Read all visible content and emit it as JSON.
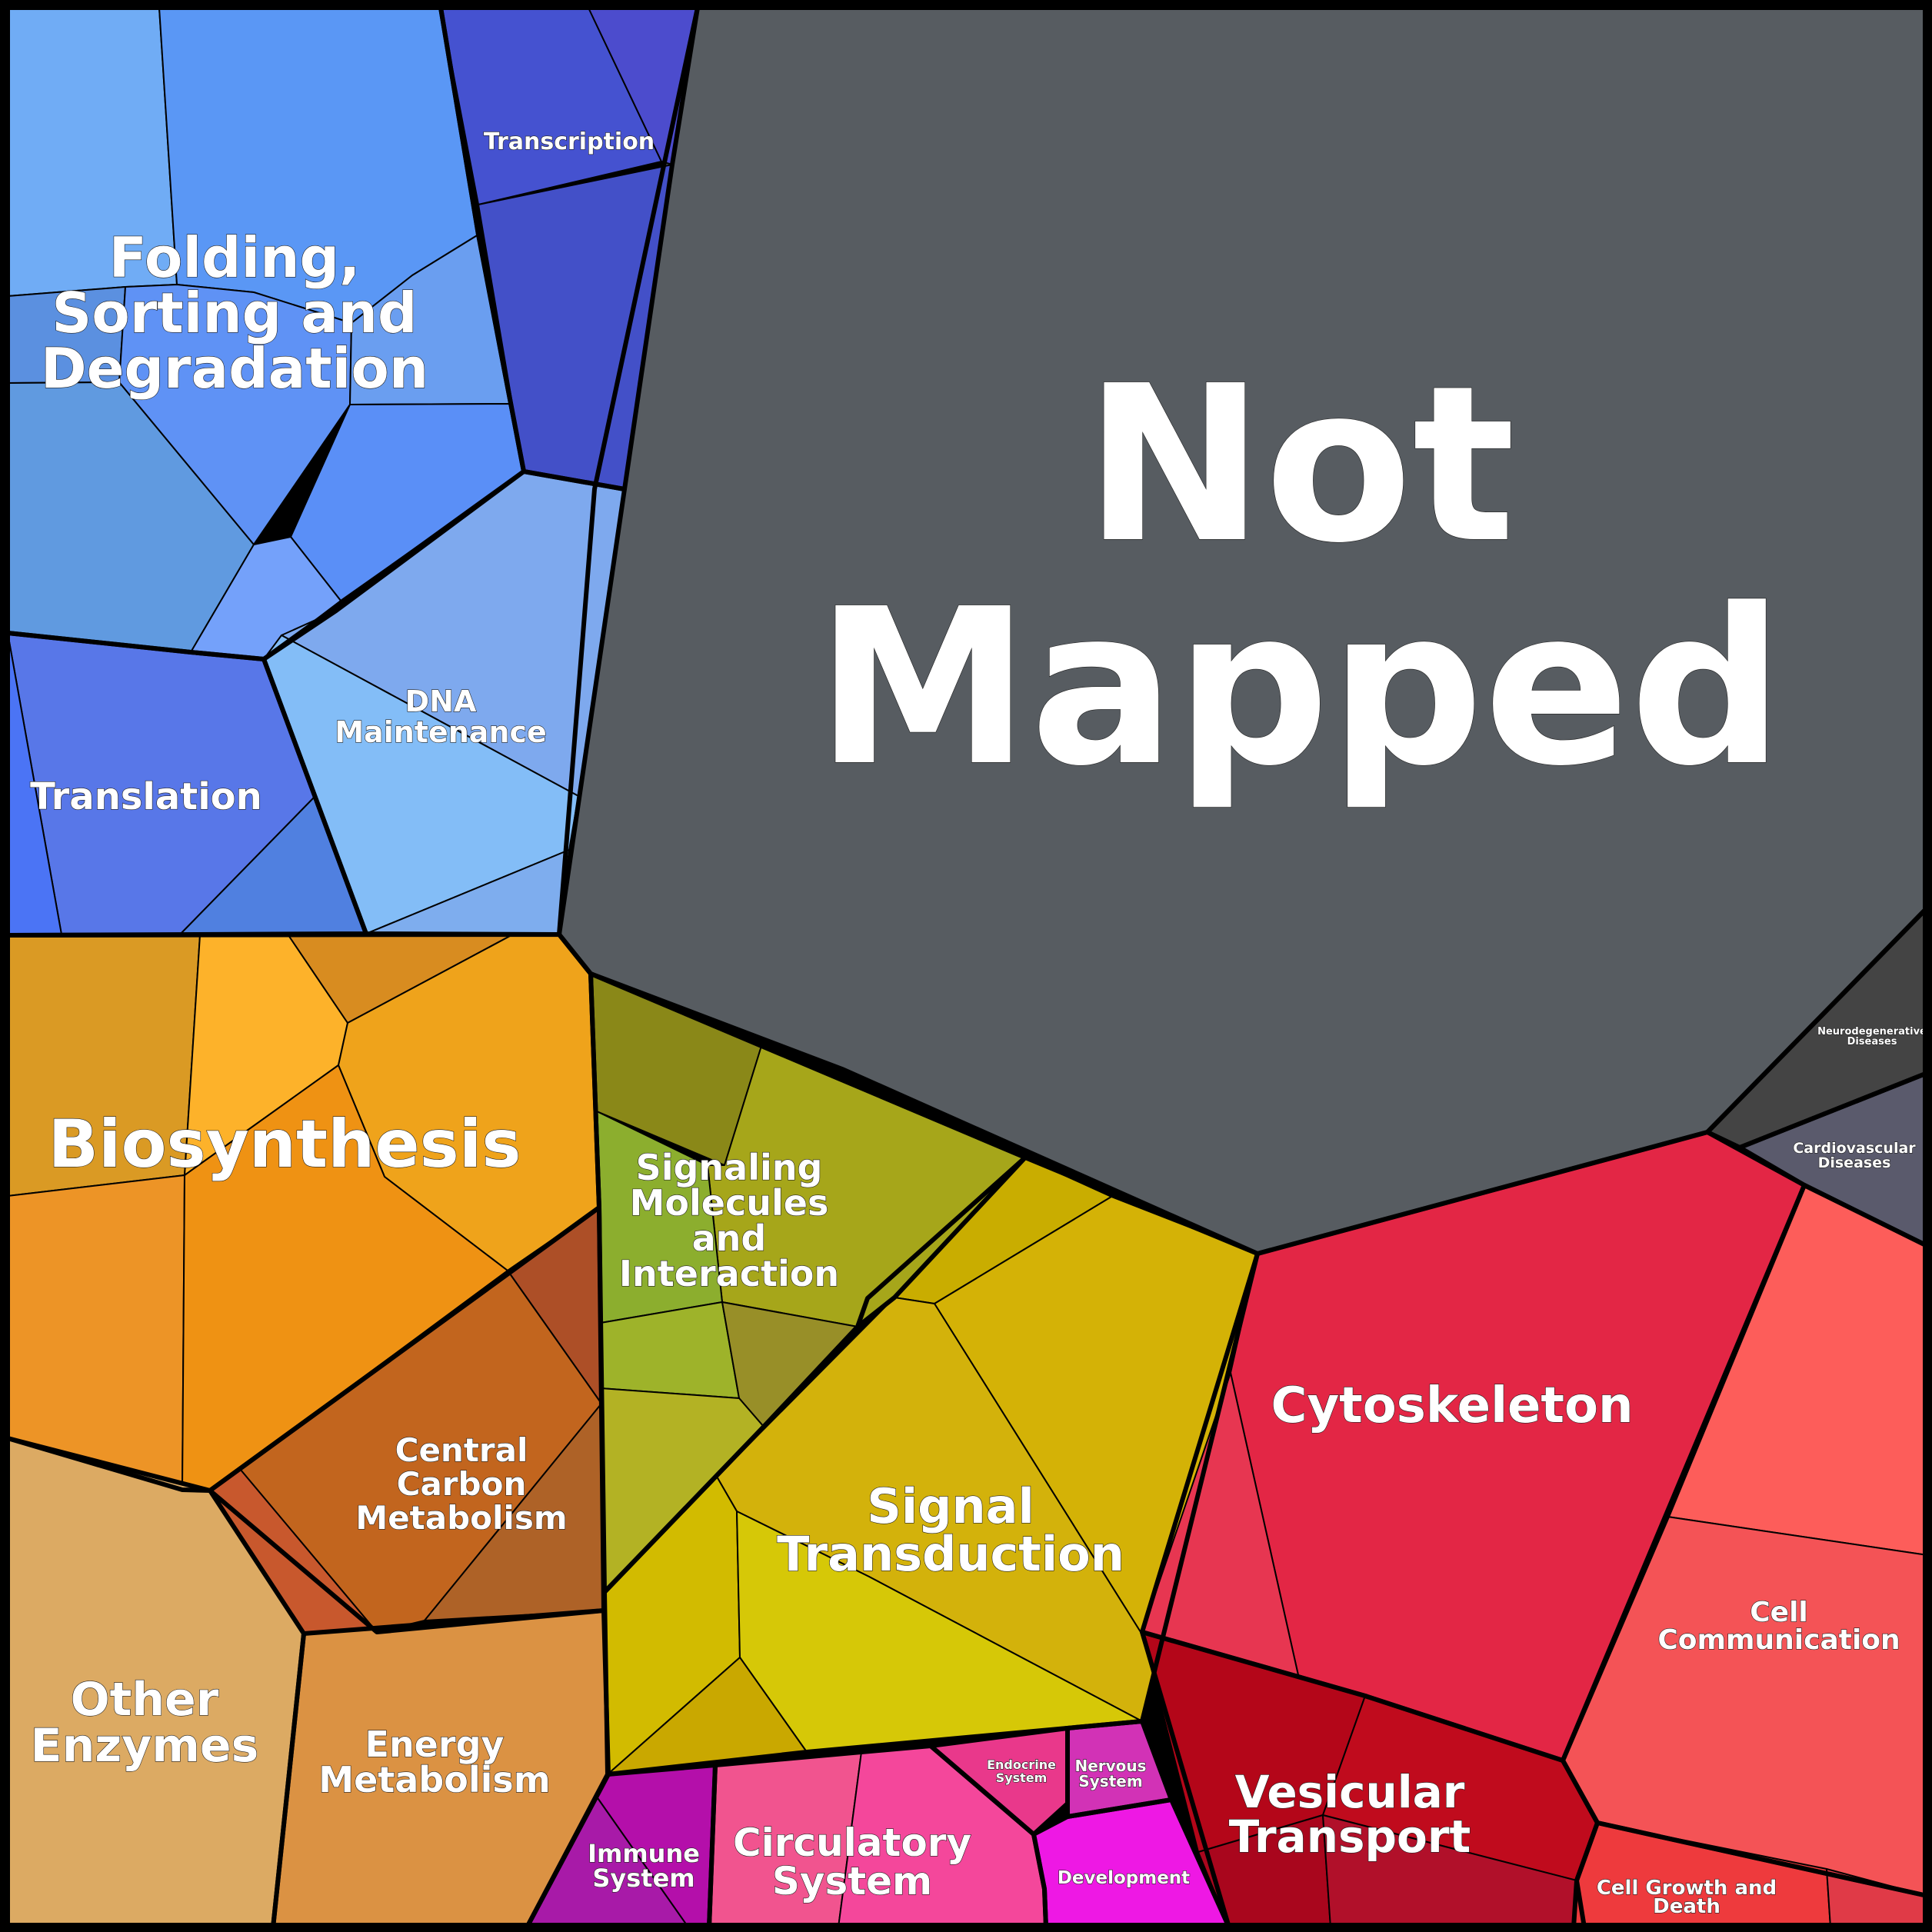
{
  "regions": [
    {
      "name": "Not Mapped",
      "color": "#575c61",
      "lines": [
        "Not",
        "Mapped"
      ]
    },
    {
      "name": "Folding, Sorting and Degradation",
      "color": "#5a97f5",
      "lines": [
        "Folding,",
        "Sorting and",
        "Degradation"
      ]
    },
    {
      "name": "Transcription",
      "color": "#4350c8",
      "lines": [
        "Transcription"
      ]
    },
    {
      "name": "DNA Maintenance",
      "color": "#83baf7",
      "lines": [
        "DNA",
        "Maintenance"
      ]
    },
    {
      "name": "Translation",
      "color": "#5877e8",
      "lines": [
        "Translation"
      ]
    },
    {
      "name": "Biosynthesis",
      "color": "#ef9a1c",
      "lines": [
        "Biosynthesis"
      ]
    },
    {
      "name": "Central Carbon Metabolism",
      "color": "#c2651e",
      "lines": [
        "Central",
        "Carbon",
        "Metabolism"
      ]
    },
    {
      "name": "Other Enzymes",
      "color": "#dcaa63",
      "lines": [
        "Other",
        "Enzymes"
      ]
    },
    {
      "name": "Energy Metabolism",
      "color": "#db9243",
      "lines": [
        "Energy",
        "Metabolism"
      ]
    },
    {
      "name": "Signaling Molecules and Interaction",
      "color": "#a7a61a",
      "lines": [
        "Signaling",
        "Molecules",
        "and",
        "Interaction"
      ]
    },
    {
      "name": "Signal Transduction",
      "color": "#d4b206",
      "lines": [
        "Signal",
        "Transduction"
      ]
    },
    {
      "name": "Cytoskeleton",
      "color": "#e32645",
      "lines": [
        "Cytoskeleton"
      ]
    },
    {
      "name": "Cell Communication",
      "color": "#f45356",
      "lines": [
        "Cell",
        "Communication"
      ]
    },
    {
      "name": "Vesicular Transport",
      "color": "#c00b1d",
      "lines": [
        "Vesicular",
        "Transport"
      ]
    },
    {
      "name": "Cell Growth and Death",
      "color": "#ee3a3d",
      "lines": [
        "Cell Growth and",
        "Death"
      ]
    },
    {
      "name": "Immune System",
      "color": "#b40faa",
      "lines": [
        "Immune",
        "System"
      ]
    },
    {
      "name": "Circulatory System",
      "color": "#f4479b",
      "lines": [
        "Circulatory",
        "System"
      ]
    },
    {
      "name": "Endocrine System",
      "color": "#e9388b",
      "lines": [
        "Endocrine",
        "System"
      ]
    },
    {
      "name": "Nervous System",
      "color": "#d232b6",
      "lines": [
        "Nervous",
        "System"
      ]
    },
    {
      "name": "Development",
      "color": "#ee18e4",
      "lines": [
        "Development"
      ]
    },
    {
      "name": "Neurodegenerative Diseases",
      "color": "#444444",
      "lines": [
        "Neurodegenerative",
        "Diseases"
      ]
    },
    {
      "name": "Cardiovascular Diseases",
      "color": "#5a5a6c",
      "lines": [
        "Cardiovascular",
        "Diseases"
      ]
    }
  ]
}
